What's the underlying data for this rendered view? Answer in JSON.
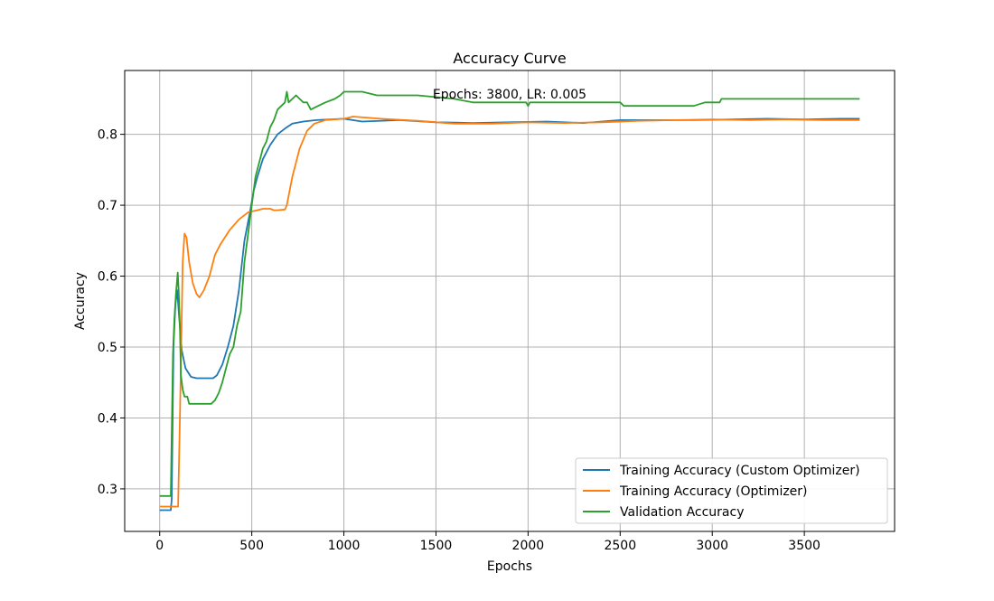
{
  "chart_data": {
    "type": "line",
    "title": "Accuracy Curve",
    "annotation": "Epochs: 3800, LR: 0.005",
    "xlabel": "Epochs",
    "ylabel": "Accuracy",
    "xlim": [
      -190,
      3990
    ],
    "ylim": [
      0.24,
      0.89
    ],
    "xticks": [
      0,
      500,
      1000,
      1500,
      2000,
      2500,
      3000,
      3500
    ],
    "yticks": [
      0.3,
      0.4,
      0.5,
      0.6,
      0.7,
      0.8
    ],
    "grid": true,
    "legend_position": "bottom-right",
    "series": [
      {
        "name": "Training Accuracy (Custom Optimizer)",
        "color": "#1f77b4",
        "x": [
          0,
          60,
          65,
          75,
          85,
          95,
          105,
          120,
          140,
          170,
          200,
          250,
          290,
          310,
          340,
          370,
          400,
          430,
          460,
          490,
          510,
          530,
          560,
          600,
          640,
          680,
          720,
          780,
          850,
          1000,
          1100,
          1300,
          1500,
          1700,
          1900,
          2100,
          2300,
          2500,
          2700,
          2900,
          3100,
          3300,
          3500,
          3700,
          3800
        ],
        "y": [
          0.27,
          0.27,
          0.285,
          0.5,
          0.56,
          0.58,
          0.545,
          0.495,
          0.47,
          0.458,
          0.456,
          0.456,
          0.456,
          0.46,
          0.475,
          0.5,
          0.53,
          0.58,
          0.65,
          0.69,
          0.72,
          0.74,
          0.765,
          0.785,
          0.8,
          0.808,
          0.815,
          0.818,
          0.82,
          0.822,
          0.818,
          0.82,
          0.817,
          0.816,
          0.817,
          0.818,
          0.816,
          0.82,
          0.82,
          0.82,
          0.821,
          0.822,
          0.821,
          0.822,
          0.822
        ]
      },
      {
        "name": "Training Accuracy (Optimizer)",
        "color": "#ff7f0e",
        "x": [
          0,
          100,
          110,
          125,
          135,
          145,
          160,
          180,
          200,
          215,
          240,
          270,
          300,
          330,
          380,
          430,
          480,
          530,
          560,
          600,
          620,
          640,
          680,
          690,
          720,
          760,
          800,
          840,
          900,
          1000,
          1050,
          1200,
          1400,
          1600,
          1800,
          2000,
          2200,
          2400,
          2600,
          2800,
          3000,
          3200,
          3400,
          3600,
          3800
        ],
        "y": [
          0.275,
          0.275,
          0.4,
          0.62,
          0.66,
          0.655,
          0.62,
          0.59,
          0.575,
          0.57,
          0.58,
          0.6,
          0.63,
          0.645,
          0.665,
          0.68,
          0.69,
          0.693,
          0.695,
          0.695,
          0.693,
          0.693,
          0.694,
          0.7,
          0.74,
          0.78,
          0.805,
          0.815,
          0.82,
          0.822,
          0.825,
          0.822,
          0.819,
          0.815,
          0.815,
          0.817,
          0.816,
          0.817,
          0.819,
          0.82,
          0.821,
          0.82,
          0.821,
          0.82,
          0.82
        ]
      },
      {
        "name": "Validation Accuracy",
        "color": "#2ca02c",
        "x": [
          0,
          55,
          60,
          72,
          80,
          88,
          93,
          98,
          103,
          110,
          115,
          125,
          135,
          150,
          160,
          200,
          250,
          280,
          300,
          320,
          340,
          360,
          380,
          400,
          420,
          440,
          460,
          480,
          500,
          520,
          540,
          560,
          580,
          600,
          620,
          640,
          660,
          680,
          690,
          700,
          720,
          740,
          760,
          780,
          800,
          820,
          860,
          900,
          950,
          980,
          1000,
          1100,
          1180,
          1400,
          1600,
          1700,
          1900,
          1990,
          2000,
          2010,
          2500,
          2520,
          2900,
          2960,
          3040,
          3050,
          3800
        ],
        "y": [
          0.29,
          0.29,
          0.29,
          0.49,
          0.54,
          0.575,
          0.59,
          0.605,
          0.58,
          0.53,
          0.46,
          0.44,
          0.43,
          0.43,
          0.42,
          0.42,
          0.42,
          0.42,
          0.425,
          0.435,
          0.45,
          0.47,
          0.49,
          0.5,
          0.53,
          0.55,
          0.62,
          0.66,
          0.7,
          0.74,
          0.76,
          0.78,
          0.79,
          0.81,
          0.82,
          0.835,
          0.84,
          0.845,
          0.86,
          0.845,
          0.85,
          0.855,
          0.85,
          0.845,
          0.845,
          0.835,
          0.84,
          0.845,
          0.85,
          0.855,
          0.86,
          0.86,
          0.855,
          0.855,
          0.85,
          0.845,
          0.845,
          0.845,
          0.84,
          0.845,
          0.845,
          0.84,
          0.84,
          0.845,
          0.845,
          0.85,
          0.85
        ]
      }
    ]
  }
}
